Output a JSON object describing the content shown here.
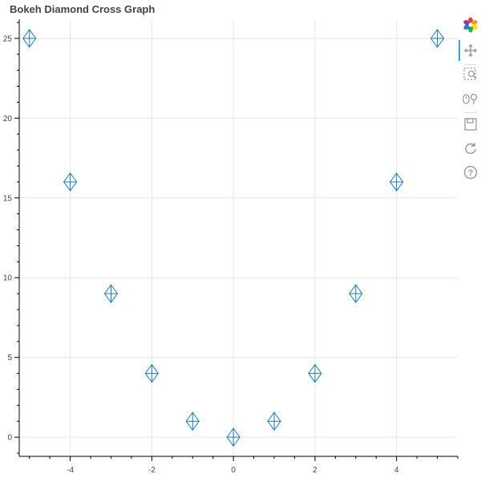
{
  "chart_data": {
    "type": "scatter",
    "title": "Bokeh Diamond Cross Graph",
    "x": [
      -5,
      -4,
      -3,
      -2,
      -1,
      0,
      1,
      2,
      3,
      4,
      5
    ],
    "y": [
      25,
      16,
      9,
      4,
      1,
      0,
      1,
      4,
      9,
      16,
      25
    ],
    "marker": "diamond_cross",
    "marker_color": "#1f77b4",
    "xlim": [
      -5.25,
      5.5
    ],
    "ylim": [
      -1.2,
      26.2
    ],
    "x_ticks": [
      "-4",
      "-2",
      "0",
      "2",
      "4"
    ],
    "y_ticks": [
      "0",
      "5",
      "10",
      "15",
      "20",
      "25"
    ],
    "grid": true,
    "xlabel": "",
    "ylabel": ""
  },
  "toolbar": {
    "tools": [
      "bokeh-logo-icon",
      "pan-icon",
      "box-zoom-icon",
      "wheel-zoom-icon",
      "save-icon",
      "reset-icon",
      "help-icon"
    ],
    "accent_color": "#26aae1",
    "icon_color": "#999999"
  }
}
